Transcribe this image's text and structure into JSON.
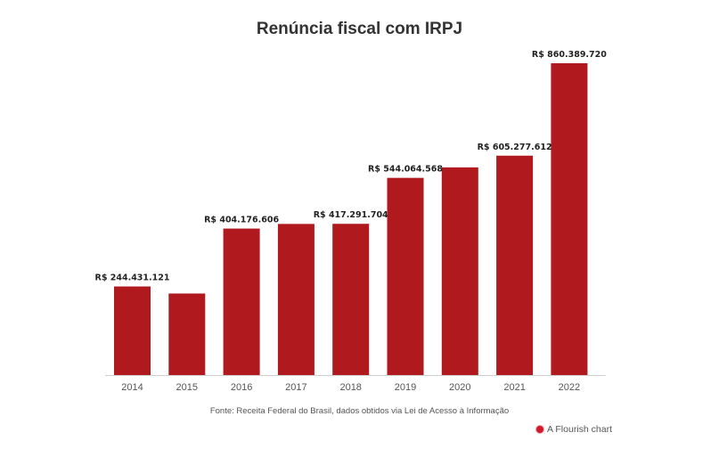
{
  "chart_data": {
    "type": "bar",
    "title": "Renúncia fiscal com IRPJ",
    "categories": [
      "2014",
      "2015",
      "2016",
      "2017",
      "2018",
      "2019",
      "2020",
      "2021",
      "2022"
    ],
    "values": [
      244431121,
      225000000,
      404176606,
      417000000,
      417291704,
      544064568,
      573000000,
      605277612,
      860389720
    ],
    "labels": [
      "R$ 244.431.121",
      "",
      "R$ 404.176.606",
      "",
      "R$ 417.291.704",
      "R$ 544.064.568",
      "",
      "R$ 605.277.612",
      "R$ 860.389.720"
    ],
    "ylim": [
      0,
      880000000
    ],
    "bar_color": "#b0191e",
    "grid": false
  },
  "footer": {
    "source": "Fonte: Receita Federal do Brasil, dados obtidos via Lei de Acesso à Informação",
    "brand": "A Flourish chart",
    "brand_color": "#d11a2a"
  }
}
